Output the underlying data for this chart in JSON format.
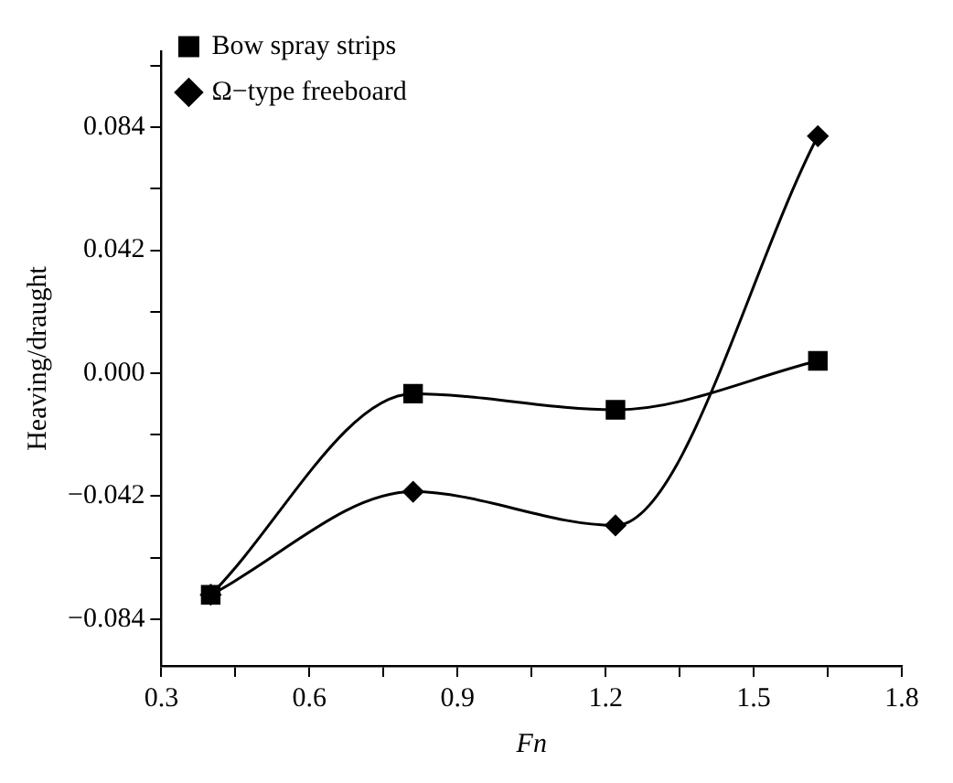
{
  "chart_data": {
    "type": "line",
    "xlabel": "Fn",
    "ylabel": "Heaving/draught",
    "xlim": [
      0.3,
      1.8
    ],
    "xticks": [
      {
        "value": 0.3,
        "label": "0.3"
      },
      {
        "value": 0.45,
        "label": null
      },
      {
        "value": 0.6,
        "label": "0.6"
      },
      {
        "value": 0.75,
        "label": null
      },
      {
        "value": 0.9,
        "label": "0.9"
      },
      {
        "value": 1.05,
        "label": null
      },
      {
        "value": 1.2,
        "label": "1.2"
      },
      {
        "value": 1.35,
        "label": null
      },
      {
        "value": 1.5,
        "label": "1.5"
      },
      {
        "value": 1.65,
        "label": null
      },
      {
        "value": 1.8,
        "label": "1.8"
      }
    ],
    "ylim": [
      -0.1,
      0.11
    ],
    "yticks": [
      {
        "value": -0.084,
        "label": "−0.084"
      },
      {
        "value": -0.063,
        "label": null
      },
      {
        "value": -0.042,
        "label": "−0.042"
      },
      {
        "value": -0.021,
        "label": null
      },
      {
        "value": 0,
        "label": "0.000"
      },
      {
        "value": 0.021,
        "label": null
      },
      {
        "value": 0.042,
        "label": "0.042"
      },
      {
        "value": 0.063,
        "label": null
      },
      {
        "value": 0.084,
        "label": "0.084"
      },
      {
        "value": 0.105,
        "label": null
      }
    ],
    "x": [
      0.4,
      0.81,
      1.22,
      1.63
    ],
    "series": [
      {
        "name": "Bow spray strips",
        "color": "#000000",
        "marker": "square",
        "values": [
          -0.0757,
          -0.007,
          -0.0125,
          0.0042
        ]
      },
      {
        "name": "Ω−type freeboard",
        "color": "#000000",
        "marker": "diamond",
        "values": [
          -0.0757,
          -0.0405,
          -0.052,
          0.081
        ]
      }
    ],
    "grid": false,
    "legend": "top left",
    "line_style": "solid"
  }
}
